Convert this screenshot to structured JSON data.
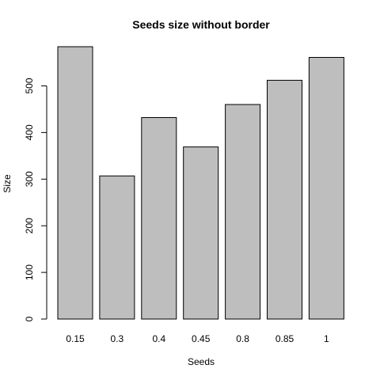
{
  "chart_data": {
    "type": "bar",
    "title": "Seeds size without border",
    "xlabel": "Seeds",
    "ylabel": "Size",
    "categories": [
      "0.15",
      "0.3",
      "0.4",
      "0.45",
      "0.8",
      "0.85",
      "1"
    ],
    "values": [
      584,
      307,
      432,
      369,
      460,
      512,
      561
    ],
    "ylim": [
      0,
      584
    ],
    "yticks": [
      0,
      100,
      200,
      300,
      400,
      500
    ],
    "bar_color": "#bebebe",
    "grid": false,
    "legend": "none"
  }
}
